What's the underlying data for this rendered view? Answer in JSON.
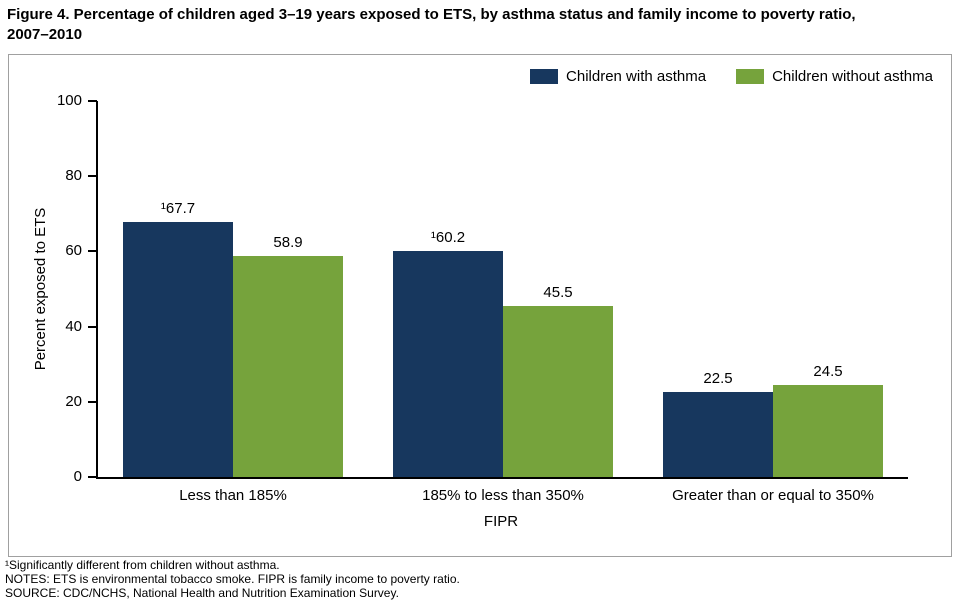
{
  "title": "Figure 4. Percentage of children aged 3–19 years exposed to ETS, by asthma status and family income to poverty ratio,\n2007–2010",
  "chart_data": {
    "type": "bar",
    "categories": [
      "Less than 185%",
      "185% to less than 350%",
      "Greater than or equal to 350%"
    ],
    "series": [
      {
        "name": "Children with asthma",
        "color": "#17375e",
        "values": [
          67.7,
          60.2,
          22.5
        ],
        "labels": [
          "¹67.7",
          "¹60.2",
          "22.5"
        ]
      },
      {
        "name": "Children without asthma",
        "color": "#76a33c",
        "values": [
          58.9,
          45.5,
          24.5
        ],
        "labels": [
          "58.9",
          "45.5",
          "24.5"
        ]
      }
    ],
    "title": "Figure 4. Percentage of children aged 3–19 years exposed to ETS, by asthma status and family income to poverty ratio, 2007–2010",
    "xlabel": "FIPR",
    "ylabel": "Percent exposed to ETS",
    "ylim": [
      0,
      100
    ],
    "y_ticks": [
      0,
      20,
      40,
      60,
      80,
      100
    ],
    "grid": false,
    "legend_position": "top-right"
  },
  "footnotes": [
    "¹Significantly different from children without asthma.",
    "NOTES: ETS is environmental tobacco smoke. FIPR is family income to poverty ratio.",
    "SOURCE: CDC/NCHS, National Health and Nutrition Examination Survey."
  ]
}
